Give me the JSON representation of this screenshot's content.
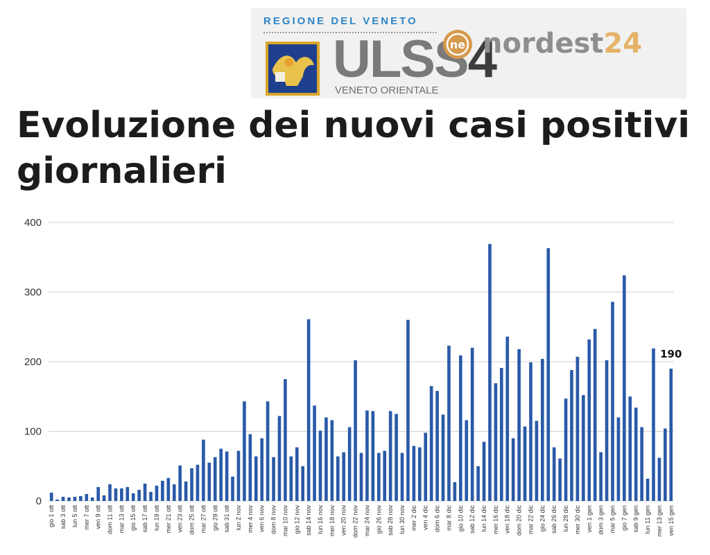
{
  "header": {
    "region": "REGIONE DEL VENETO",
    "ulss": "ULSS",
    "ulss_num": "4",
    "ulss_sub": "VENETO ORIENTALE",
    "ne_mark": "ne",
    "nordest": "nordest",
    "nordest_num": "24"
  },
  "chart_data": {
    "type": "bar",
    "title": "Evoluzione dei nuovi casi positivi giornalieri",
    "ylim": [
      0,
      400
    ],
    "yticks": [
      0,
      100,
      200,
      300,
      400
    ],
    "grid": true,
    "bar_color": "#2a5aa8",
    "categories": [
      "gio 1 ott",
      "ven 2 ott",
      "sab 3 ott",
      "dom 4 ott",
      "lun 5 ott",
      "mar 6 ott",
      "mer 7 ott",
      "gio 8 ott",
      "ven 9 ott",
      "sab 10 ott",
      "dom 11 ott",
      "lun 12 ott",
      "mar 13 ott",
      "mer 14 ott",
      "gio 15 ott",
      "ven 16 ott",
      "sab 17 ott",
      "dom 18 ott",
      "lun 19 ott",
      "mar 20 ott",
      "mer 21 ott",
      "gio 22 ott",
      "ven 23 ott",
      "sab 24 ott",
      "dom 25 ott",
      "lun 26 ott",
      "mar 27 ott",
      "mer 28 ott",
      "gio 29 ott",
      "ven 30 ott",
      "sab 31 ott",
      "dom 1 nov",
      "lun 2 nov",
      "mar 3 nov",
      "mer 4 nov",
      "gio 5 nov",
      "ven 6 nov",
      "sab 7 nov",
      "dom 8 nov",
      "lun 9 nov",
      "mar 10 nov",
      "mer 11 nov",
      "gio 12 nov",
      "ven 13 nov",
      "sab 14 nov",
      "dom 15 nov",
      "lun 16 nov",
      "mar 17 nov",
      "mer 18 nov",
      "gio 19 nov",
      "ven 20 nov",
      "sab 21 nov",
      "dom 22 nov",
      "lun 23 nov",
      "mar 24 nov",
      "mer 25 nov",
      "gio 26 nov",
      "ven 27 nov",
      "sab 28 nov",
      "dom 29 nov",
      "lun 30 nov",
      "mar 1 dic",
      "mer 2 dic",
      "gio 3 dic",
      "ven 4 dic",
      "sab 5 dic",
      "dom 6 dic",
      "lun 7 dic",
      "mar 8 dic",
      "mer 9 dic",
      "gio 10 dic",
      "ven 11 dic",
      "sab 12 dic",
      "dom 13 dic",
      "lun 14 dic",
      "mar 15 dic",
      "mer 16 dic",
      "gio 17 dic",
      "ven 18 dic",
      "sab 19 dic",
      "dom 20 dic",
      "lun 21 dic",
      "mar 22 dic",
      "mer 23 dic",
      "gio 24 dic",
      "ven 25 dic",
      "sab 26 dic",
      "dom 27 dic",
      "lun 28 dic",
      "mar 29 dic",
      "mer 30 dic",
      "gio 31 dic",
      "ven 1 gen",
      "sab 2 gen",
      "dom 3 gen",
      "lun 4 gen",
      "mar 5 gen",
      "mer 6 gen",
      "gio 7 gen",
      "ven 8 gen",
      "sab 9 gen",
      "dom 10 gen",
      "lun 11 gen",
      "mar 12 gen",
      "mer 13 gen",
      "gio 14 gen",
      "ven 15 gen"
    ],
    "visible_ticks": [
      "gio 1 ott",
      "sab 3 ott",
      "lun 5 ott",
      "mer 7 ott",
      "ven 9 ott",
      "dom 11 ott",
      "mar 13 ott",
      "gio 15 ott",
      "sab 17 ott",
      "lun 19 ott",
      "mer 21 ott",
      "ven 23 ott",
      "dom 25 ott",
      "mar 27 ott",
      "gio 29 ott",
      "sab 31 ott",
      "lun 2 nov",
      "mer 4 nov",
      "ven 6 nov",
      "dom 8 nov",
      "mar 10 nov",
      "gio 12 nov",
      "sab 14 nov",
      "lun 16 nov",
      "mer 18 nov",
      "ven 20 nov",
      "dom 22 nov",
      "mar 24 nov",
      "gio 26 nov",
      "sab 28 nov",
      "lun 30 nov",
      "mer 2 dic",
      "ven 4 dic",
      "dom 6 dic",
      "mar 8 dic",
      "gio 10 dic",
      "sab 12 dic",
      "lun 14 dic",
      "mer 16 dic",
      "ven 18 dic",
      "dom 20 dic",
      "mar 22 dic",
      "gio 24 dic",
      "sab 26 dic",
      "lun 28 dic",
      "mer 30 dic",
      "ven 1 gen",
      "dom 3 gen",
      "mar 5 gen",
      "gio 7 gen",
      "sab 9 gen",
      "lun 11 gen",
      "mer 13 gen",
      "ven 15 gen"
    ],
    "values": [
      12,
      2,
      6,
      5,
      6,
      7,
      10,
      5,
      20,
      8,
      24,
      18,
      18,
      20,
      11,
      16,
      25,
      13,
      22,
      29,
      33,
      24,
      51,
      28,
      47,
      52,
      88,
      55,
      63,
      75,
      71,
      35,
      72,
      143,
      96,
      64,
      90,
      143,
      63,
      122,
      175,
      64,
      77,
      50,
      261,
      137,
      101,
      120,
      116,
      64,
      70,
      106,
      202,
      69,
      130,
      129,
      69,
      72,
      129,
      125,
      69,
      260,
      79,
      77,
      98,
      165,
      158,
      124,
      223,
      27,
      209,
      116,
      220,
      50,
      85,
      369,
      169,
      191,
      236,
      90,
      218,
      107,
      199,
      115,
      204,
      363,
      77,
      61,
      147,
      188,
      207,
      152,
      232,
      247,
      70,
      202,
      286,
      120,
      324,
      150,
      134,
      106,
      32,
      219,
      62,
      104,
      190
    ],
    "annotation": {
      "label": "190",
      "category": "ven 15 gen"
    }
  }
}
